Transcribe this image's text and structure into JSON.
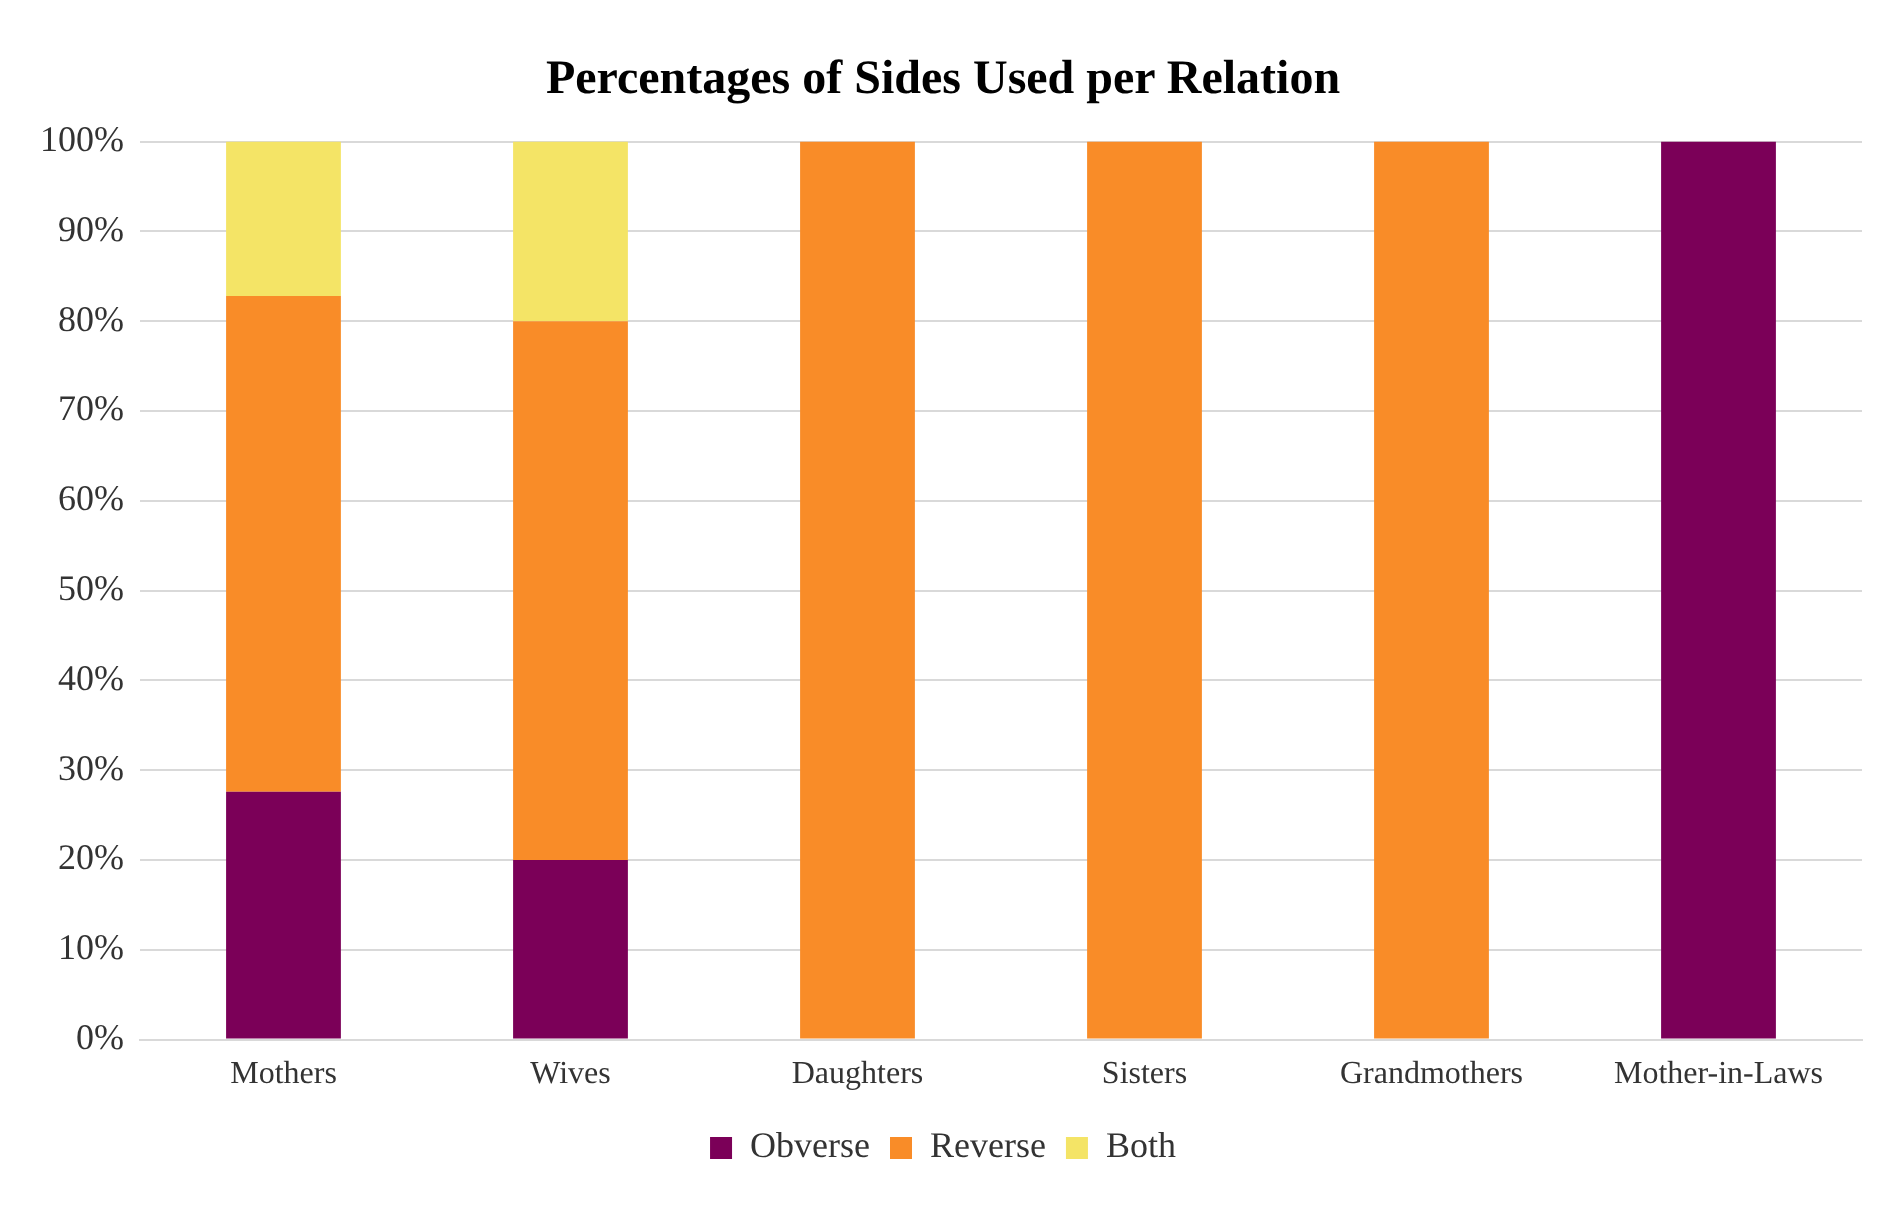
{
  "chart_data": {
    "type": "bar",
    "title": "Percentages of Sides Used per Relation",
    "categories": [
      "Mothers",
      "Wives",
      "Daughters",
      "Sisters",
      "Grandmothers",
      "Mother-in-Laws"
    ],
    "series": [
      {
        "name": "Obverse",
        "color": "#7b0058",
        "values": [
          27.6,
          20,
          0,
          0,
          0,
          100
        ]
      },
      {
        "name": "Reverse",
        "color": "#f98c28",
        "values": [
          55.2,
          60,
          100,
          100,
          100,
          0
        ]
      },
      {
        "name": "Both",
        "color": "#f4e466",
        "values": [
          17.2,
          20,
          0,
          0,
          0,
          0
        ]
      }
    ],
    "stacked": true,
    "ylim": [
      0,
      100
    ],
    "yticks": [
      {
        "value": 0,
        "label": "0%"
      },
      {
        "value": 10,
        "label": "10%"
      },
      {
        "value": 20,
        "label": "20%"
      },
      {
        "value": 30,
        "label": "30%"
      },
      {
        "value": 40,
        "label": "40%"
      },
      {
        "value": 50,
        "label": "50%"
      },
      {
        "value": 60,
        "label": "60%"
      },
      {
        "value": 70,
        "label": "70%"
      },
      {
        "value": 80,
        "label": "80%"
      },
      {
        "value": 90,
        "label": "90%"
      },
      {
        "value": 100,
        "label": "100%"
      }
    ],
    "grid": "y",
    "legend": "bottom"
  }
}
